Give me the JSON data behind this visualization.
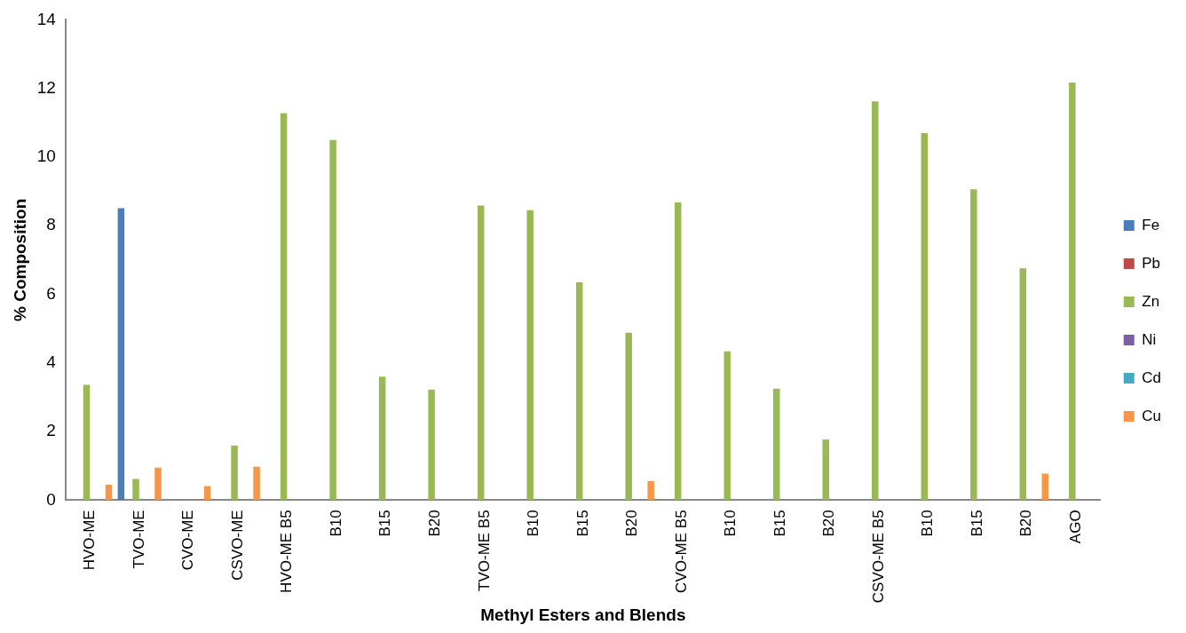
{
  "chart_data": {
    "type": "bar",
    "xlabel": "Methyl Esters and Blends",
    "ylabel": "% Composition",
    "categories": [
      "HVO-ME",
      "TVO-ME",
      "CVO-ME",
      "CSVO-ME",
      "HVO-ME B5",
      "B10",
      "B15",
      "B20",
      "TVO-ME B5",
      "B10",
      "B15",
      "B20",
      "CVO-ME B5",
      "B10",
      "B15",
      "B20",
      "CSVO-ME B5",
      "B10",
      "B15",
      "B20",
      "AGO"
    ],
    "series": [
      {
        "name": "Fe",
        "color": "#4a7ebb",
        "values": [
          0,
          8.51,
          0,
          0,
          0,
          0,
          0,
          0,
          0,
          0,
          0,
          0,
          0,
          0,
          0,
          0,
          0,
          0,
          0,
          0,
          0
        ]
      },
      {
        "name": "Pb",
        "color": "#be4b48",
        "values": [
          0,
          0,
          0,
          0,
          0,
          0,
          0,
          0,
          0,
          0,
          0,
          0,
          0,
          0,
          0,
          0,
          0,
          0,
          0,
          0,
          0
        ]
      },
      {
        "name": "Zn",
        "color": "#98b954",
        "values": [
          3.36,
          0.62,
          0,
          1.59,
          11.28,
          10.5,
          3.6,
          3.22,
          8.59,
          8.45,
          6.35,
          4.88,
          8.68,
          4.34,
          3.25,
          1.77,
          11.62,
          10.7,
          9.06,
          6.76,
          12.17
        ]
      },
      {
        "name": "Ni",
        "color": "#7d60a0",
        "values": [
          0,
          0,
          0,
          0,
          0,
          0,
          0,
          0,
          0,
          0,
          0,
          0,
          0,
          0,
          0,
          0,
          0,
          0,
          0,
          0,
          0
        ]
      },
      {
        "name": "Cd",
        "color": "#46aac5",
        "values": [
          0,
          0,
          0,
          0,
          0,
          0,
          0,
          0,
          0,
          0,
          0,
          0,
          0,
          0,
          0,
          0,
          0,
          0,
          0,
          0,
          0
        ]
      },
      {
        "name": "Cu",
        "color": "#f79646",
        "values": [
          0.45,
          0.95,
          0.41,
          0.97,
          0,
          0,
          0,
          0,
          0,
          0,
          0,
          0.55,
          0,
          0,
          0,
          0,
          0,
          0,
          0,
          0.77,
          0
        ]
      }
    ],
    "ylim": [
      0,
      14
    ],
    "yticks": [
      0,
      2,
      4,
      6,
      8,
      10,
      12,
      14
    ],
    "grid": false,
    "legend": "right"
  }
}
